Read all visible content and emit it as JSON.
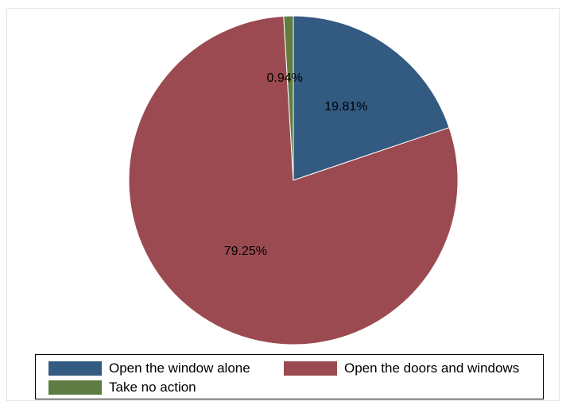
{
  "chart_data": {
    "type": "pie",
    "title": "",
    "slices": [
      {
        "label": "Open the window alone",
        "value": 19.81,
        "value_label": "19.81%",
        "color": "#335a80"
      },
      {
        "label": "Open the doors and windows",
        "value": 79.25,
        "value_label": "79.25%",
        "color": "#9b4a51"
      },
      {
        "label": "Take no action",
        "value": 0.94,
        "value_label": "0.94%",
        "color": "#5e7c43"
      }
    ],
    "legend_placement": "bottom",
    "start_angle": "12 o'clock, clockwise"
  }
}
